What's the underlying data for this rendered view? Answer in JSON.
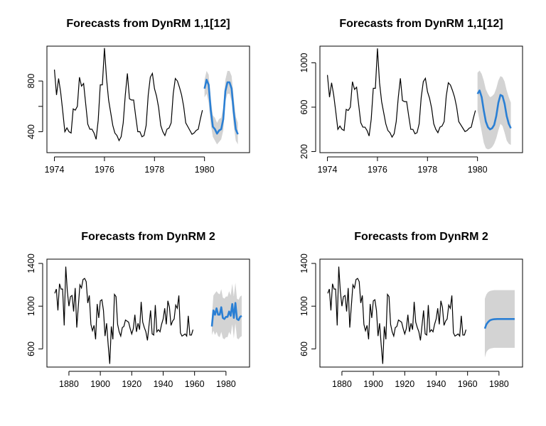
{
  "colors": {
    "history": "#000000",
    "forecast": "#2a7fd4",
    "interval": "#d3d3d3",
    "frame": "#000000"
  },
  "chart_data": [
    {
      "type": "line",
      "title": "Forecasts from DynRM 1,1[12]",
      "xlim": [
        1973.7,
        1981.8
      ],
      "ylim": [
        235,
        1075
      ],
      "xticks": [
        1974,
        1976,
        1978,
        1980
      ],
      "xtick_labels": [
        "1974",
        "1976",
        "1978",
        "1980"
      ],
      "yticks": [
        400,
        600,
        800
      ],
      "ytick_labels": [
        "400",
        "",
        "800"
      ],
      "grid": false,
      "series": [
        {
          "role": "history",
          "x_start": 1974.0,
          "x_step": 0.08333,
          "values": [
            890,
            690,
            820,
            710,
            560,
            400,
            430,
            400,
            390,
            580,
            570,
            600,
            830,
            760,
            780,
            620,
            460,
            420,
            420,
            390,
            340,
            490,
            770,
            770,
            1060,
            820,
            650,
            550,
            450,
            390,
            370,
            330,
            360,
            470,
            690,
            860,
            660,
            650,
            650,
            520,
            400,
            400,
            360,
            370,
            450,
            690,
            830,
            860,
            740,
            680,
            590,
            450,
            400,
            370,
            420,
            430,
            470,
            700,
            820,
            800,
            750,
            690,
            600,
            470,
            440,
            410,
            380,
            390,
            410,
            420,
            500,
            570
          ]
        },
        {
          "role": "forecast",
          "x_start": 1980.0,
          "x_step": 0.08333,
          "values": [
            740,
            810,
            770,
            570,
            440,
            420,
            385,
            410,
            420,
            500,
            720,
            790,
            790,
            740,
            560,
            420,
            380
          ]
        },
        {
          "role": "interval",
          "x_start": 1980.0,
          "x_step": 0.08333,
          "lower": [
            670,
            700,
            630,
            460,
            360,
            330,
            300,
            320,
            340,
            410,
            640,
            700,
            700,
            640,
            450,
            330,
            300
          ],
          "upper": [
            810,
            880,
            850,
            660,
            530,
            510,
            470,
            500,
            510,
            590,
            810,
            880,
            880,
            840,
            670,
            520,
            470
          ]
        }
      ]
    },
    {
      "type": "line",
      "title": "Forecasts from DynRM 1,1[12]",
      "xlim": [
        1973.7,
        1981.8
      ],
      "ylim": [
        190,
        1150
      ],
      "xticks": [
        1974,
        1976,
        1978,
        1980
      ],
      "xtick_labels": [
        "1974",
        "1976",
        "1978",
        "1980"
      ],
      "yticks": [
        200,
        600,
        1000
      ],
      "ytick_labels": [
        "200",
        "600",
        "1000"
      ],
      "grid": false,
      "series": [
        {
          "role": "history",
          "x_start": 1974.0,
          "x_step": 0.08333,
          "values": [
            890,
            690,
            820,
            710,
            560,
            400,
            430,
            400,
            390,
            580,
            570,
            600,
            830,
            760,
            780,
            620,
            460,
            420,
            420,
            390,
            340,
            490,
            770,
            770,
            1130,
            820,
            650,
            550,
            450,
            390,
            370,
            330,
            360,
            470,
            690,
            860,
            660,
            650,
            650,
            520,
            400,
            400,
            360,
            370,
            450,
            690,
            830,
            860,
            740,
            680,
            590,
            450,
            400,
            370,
            420,
            430,
            470,
            700,
            820,
            800,
            750,
            690,
            600,
            470,
            440,
            410,
            380,
            390,
            410,
            420,
            500,
            570
          ]
        },
        {
          "role": "forecast",
          "x_start": 1980.0,
          "x_step": 0.08333,
          "values": [
            720,
            750,
            690,
            570,
            470,
            420,
            400,
            410,
            440,
            520,
            640,
            710,
            700,
            630,
            520,
            450,
            410
          ]
        },
        {
          "role": "interval",
          "x_start": 1980.0,
          "x_step": 0.08333,
          "lower": [
            570,
            480,
            380,
            280,
            230,
            220,
            225,
            240,
            270,
            320,
            390,
            450,
            430,
            370,
            300,
            270,
            260
          ],
          "upper": [
            910,
            930,
            900,
            840,
            760,
            720,
            690,
            700,
            720,
            770,
            840,
            880,
            870,
            830,
            750,
            690,
            640
          ]
        }
      ]
    },
    {
      "type": "line",
      "title": "Forecasts from DynRM 2",
      "xlim": [
        1866,
        1995
      ],
      "ylim": [
        430,
        1440
      ],
      "xticks": [
        1880,
        1900,
        1920,
        1940,
        1960,
        1980
      ],
      "xtick_labels": [
        "1880",
        "1900",
        "1920",
        "1940",
        "1960",
        "1980"
      ],
      "yticks": [
        600,
        1000,
        1400
      ],
      "ytick_labels": [
        "600",
        "1000",
        "1400"
      ],
      "grid": false,
      "series": [
        {
          "role": "history",
          "x_start": 1871,
          "x_step": 1,
          "values": [
            1120,
            1160,
            960,
            1210,
            1160,
            1160,
            820,
            1370,
            1140,
            1000,
            1090,
            1100,
            950,
            1170,
            800,
            1000,
            1200,
            1170,
            1250,
            1260,
            1230,
            1030,
            1100,
            830,
            770,
            820,
            690,
            1020,
            890,
            1050,
            1060,
            960,
            720,
            840,
            640,
            460,
            810,
            690,
            1110,
            1090,
            830,
            760,
            720,
            800,
            810,
            870,
            860,
            850,
            790,
            740,
            790,
            920,
            760,
            840,
            780,
            1040,
            850,
            800,
            760,
            680,
            820,
            960,
            740,
            730,
            1010,
            760,
            780,
            760,
            830,
            880,
            980,
            830,
            1050,
            990,
            820,
            860,
            880,
            1010,
            980,
            1100,
            750,
            720,
            730,
            740,
            720,
            910,
            730,
            730,
            780
          ]
        },
        {
          "role": "forecast",
          "x_start": 1971,
          "x_step": 1,
          "values": [
            810,
            960,
            920,
            980,
            920,
            920,
            990,
            890,
            880,
            900,
            900,
            950,
            910,
            1020,
            890,
            1030,
            880,
            870,
            900,
            910
          ]
        },
        {
          "role": "interval",
          "x_start": 1971,
          "x_step": 1,
          "lower": [
            730,
            770,
            730,
            760,
            720,
            710,
            760,
            700,
            690,
            710,
            710,
            760,
            730,
            830,
            700,
            840,
            700,
            690,
            710,
            720
          ],
          "upper": [
            900,
            1100,
            1120,
            1140,
            1120,
            1110,
            1160,
            1080,
            1070,
            1090,
            1090,
            1140,
            1100,
            1210,
            1090,
            1220,
            1070,
            1060,
            1090,
            1100
          ]
        }
      ]
    },
    {
      "type": "line",
      "title": "Forecasts from DynRM 2",
      "xlim": [
        1866,
        1995
      ],
      "ylim": [
        430,
        1440
      ],
      "xticks": [
        1880,
        1900,
        1920,
        1940,
        1960,
        1980
      ],
      "xtick_labels": [
        "1880",
        "1900",
        "1920",
        "1940",
        "1960",
        "1980"
      ],
      "yticks": [
        600,
        1000,
        1400
      ],
      "ytick_labels": [
        "600",
        "1000",
        "1400"
      ],
      "grid": false,
      "series": [
        {
          "role": "history",
          "x_start": 1871,
          "x_step": 1,
          "values": [
            1120,
            1160,
            960,
            1210,
            1160,
            1160,
            820,
            1370,
            1140,
            1000,
            1090,
            1100,
            950,
            1170,
            800,
            1000,
            1200,
            1170,
            1250,
            1260,
            1230,
            1030,
            1100,
            830,
            770,
            820,
            690,
            1020,
            890,
            1050,
            1060,
            960,
            720,
            840,
            640,
            460,
            810,
            690,
            1110,
            1090,
            830,
            760,
            720,
            800,
            810,
            870,
            860,
            850,
            790,
            740,
            790,
            920,
            760,
            840,
            780,
            1040,
            850,
            800,
            760,
            680,
            820,
            960,
            740,
            730,
            1010,
            760,
            780,
            760,
            830,
            880,
            980,
            830,
            1050,
            990,
            820,
            860,
            880,
            1010,
            980,
            1100,
            750,
            720,
            730,
            740,
            720,
            910,
            730,
            730,
            780
          ]
        },
        {
          "role": "forecast",
          "x_start": 1971,
          "x_step": 1,
          "values": [
            790,
            830,
            850,
            865,
            872,
            876,
            878,
            879,
            880,
            880,
            880,
            880,
            880,
            880,
            880,
            880,
            880,
            880,
            880,
            880
          ]
        },
        {
          "role": "interval",
          "x_start": 1971,
          "x_step": 1,
          "lower": [
            520,
            570,
            590,
            600,
            605,
            608,
            610,
            610,
            610,
            610,
            610,
            610,
            610,
            610,
            610,
            610,
            610,
            610,
            610,
            610
          ],
          "upper": [
            1070,
            1110,
            1130,
            1140,
            1145,
            1148,
            1150,
            1150,
            1150,
            1150,
            1150,
            1150,
            1150,
            1150,
            1150,
            1150,
            1150,
            1150,
            1150,
            1150
          ]
        }
      ]
    }
  ]
}
